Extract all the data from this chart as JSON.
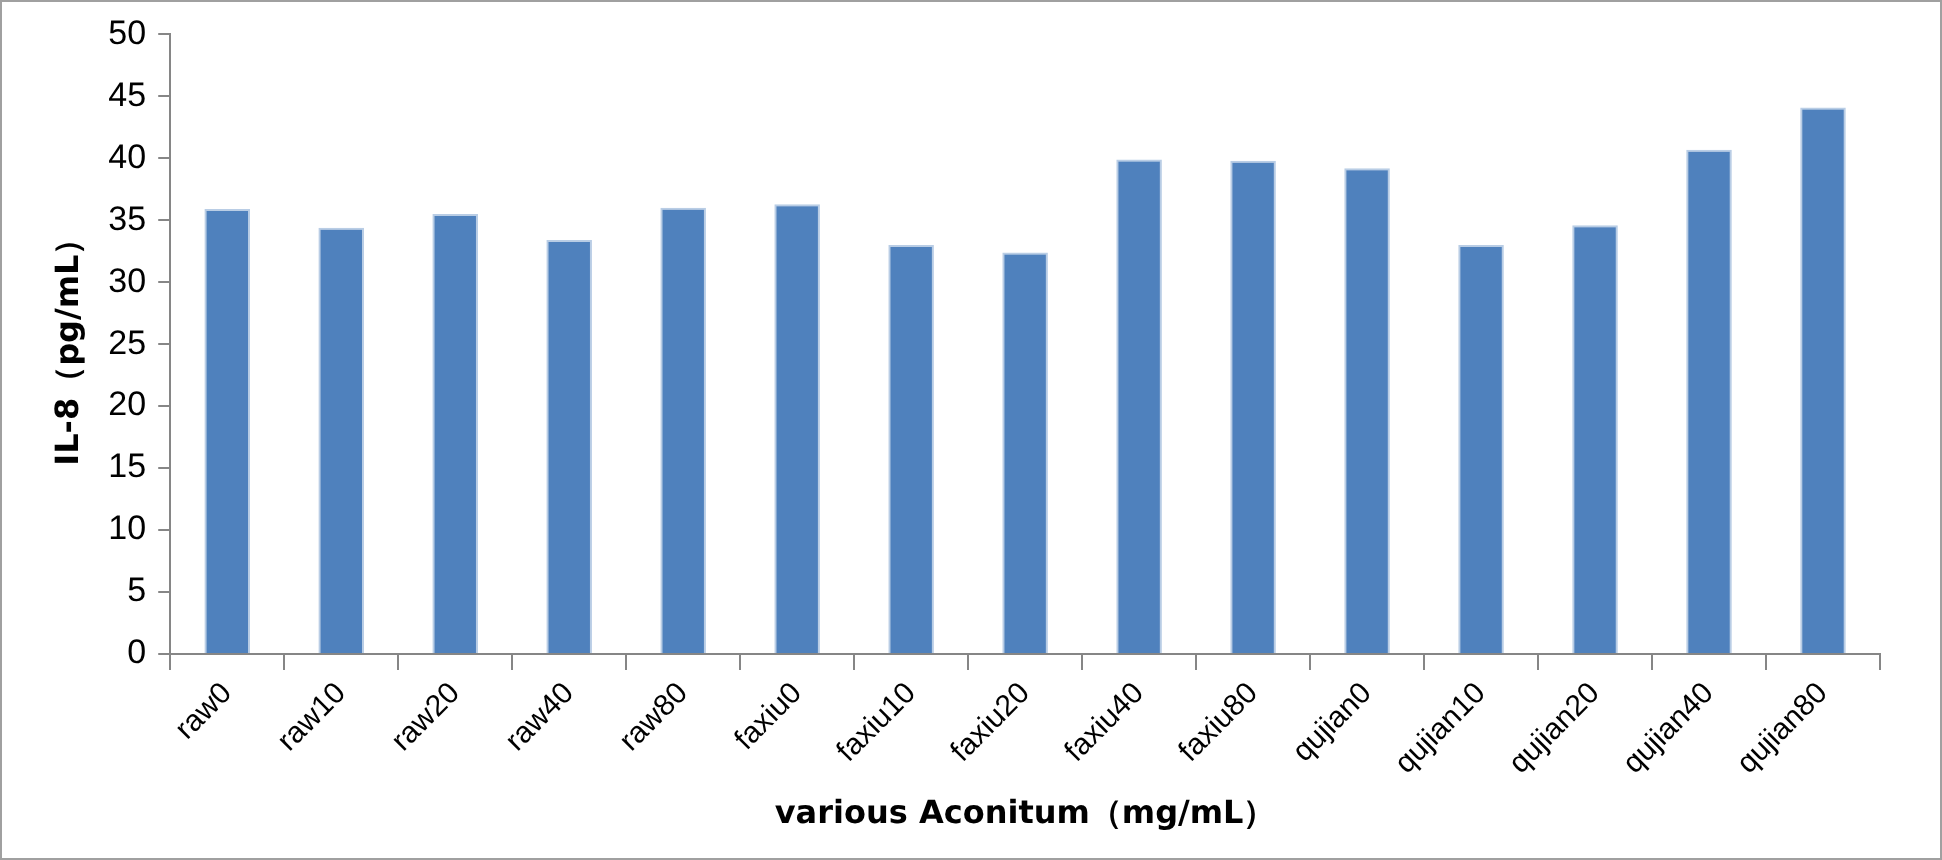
{
  "chart_data": {
    "type": "bar",
    "xlabel": "various Aconitum（mg/mL）",
    "ylabel": "IL-8（pg/mL）",
    "categories": [
      "raw0",
      "raw10",
      "raw20",
      "raw40",
      "raw80",
      "faxiu0",
      "faxiu10",
      "faxiu20",
      "faxiu40",
      "faxiu80",
      "qujian0",
      "qujian10",
      "qujian20",
      "qujian40",
      "qujian80"
    ],
    "values": [
      35.9,
      34.4,
      35.5,
      33.4,
      36.0,
      36.3,
      33.0,
      32.4,
      39.9,
      39.8,
      39.2,
      33.0,
      34.6,
      40.7,
      44.1
    ],
    "color": "#4f81bd",
    "ylim": [
      0,
      50
    ],
    "yticks": [
      0,
      5,
      10,
      15,
      20,
      25,
      30,
      35,
      40,
      45,
      50
    ],
    "grid": false,
    "legend": false
  }
}
